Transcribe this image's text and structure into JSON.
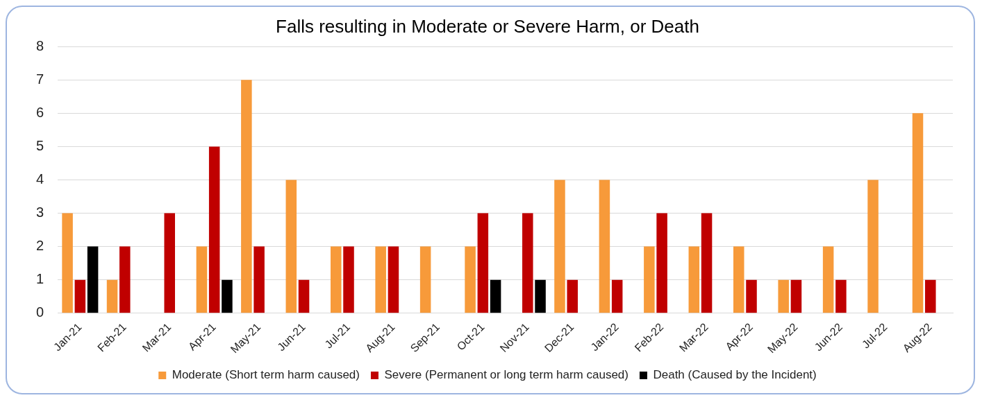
{
  "chart_data": {
    "type": "bar",
    "title": "Falls resulting in Moderate or Severe Harm, or Death",
    "categories": [
      "Jan-21",
      "Feb-21",
      "Mar-21",
      "Apr-21",
      "May-21",
      "Jun-21",
      "Jul-21",
      "Aug-21",
      "Sep-21",
      "Oct-21",
      "Nov-21",
      "Dec-21",
      "Jan-22",
      "Feb-22",
      "Mar-22",
      "Apr-22",
      "May-22",
      "Jun-22",
      "Jul-22",
      "Aug-22"
    ],
    "series": [
      {
        "name": "Moderate (Short term harm caused)",
        "color": "#f79a3a",
        "values": [
          3,
          1,
          0,
          2,
          7,
          4,
          2,
          2,
          2,
          2,
          0,
          4,
          4,
          2,
          2,
          2,
          1,
          2,
          4,
          6
        ]
      },
      {
        "name": "Severe (Permanent or long term harm caused)",
        "color": "#c00000",
        "values": [
          1,
          2,
          3,
          5,
          2,
          1,
          2,
          2,
          0,
          3,
          3,
          1,
          1,
          3,
          3,
          1,
          1,
          1,
          0,
          1
        ]
      },
      {
        "name": "Death (Caused by the Incident)",
        "color": "#000000",
        "values": [
          2,
          0,
          0,
          1,
          0,
          0,
          0,
          0,
          0,
          1,
          1,
          0,
          0,
          0,
          0,
          0,
          0,
          0,
          0,
          0
        ]
      }
    ],
    "ylim": [
      0,
      8
    ],
    "yticks": [
      0,
      1,
      2,
      3,
      4,
      5,
      6,
      7,
      8
    ],
    "grid": "y",
    "legend": "bottom"
  }
}
